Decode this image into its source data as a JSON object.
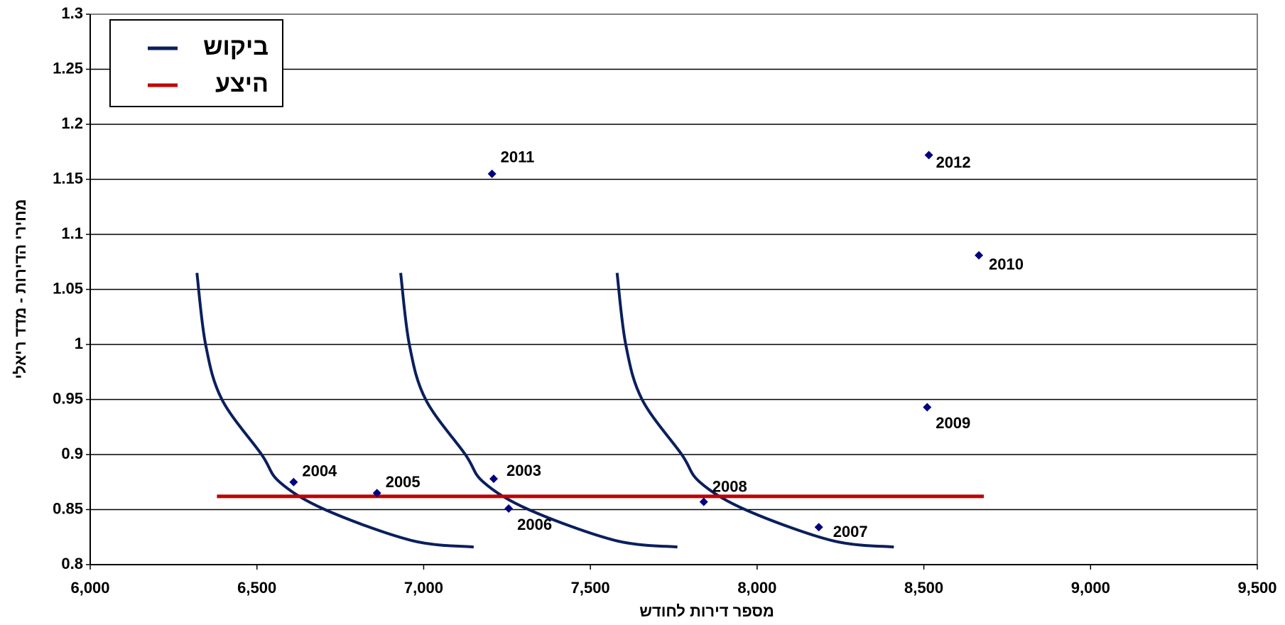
{
  "chart_data": {
    "type": "scatter",
    "x_label": "מספר דירות לחודש",
    "y_label": "מחירי הדירות - מדד ריאלי",
    "xlim": [
      6000,
      9500
    ],
    "xticks": [
      {
        "value": 6000,
        "label": "6,000"
      },
      {
        "value": 6500,
        "label": "6,500"
      },
      {
        "value": 7000,
        "label": "7,000"
      },
      {
        "value": 7500,
        "label": "7,500"
      },
      {
        "value": 8000,
        "label": "8,000"
      },
      {
        "value": 8500,
        "label": "8,500"
      },
      {
        "value": 9000,
        "label": "9,000"
      },
      {
        "value": 9500,
        "label": "9,500"
      }
    ],
    "ylim": [
      0.8,
      1.3
    ],
    "yticks": [
      0.8,
      0.85,
      0.9,
      0.95,
      1,
      1.05,
      1.1,
      1.15,
      1.2,
      1.25,
      1.3
    ],
    "grid": true,
    "legend": "top-left",
    "points": {
      "color": "#000080",
      "labels": [
        "2004",
        "2005",
        "2003",
        "2006",
        "2008",
        "2007",
        "2009",
        "2010",
        "2011",
        "2012"
      ],
      "x": [
        6610,
        6860,
        7210,
        7255,
        7840,
        8185,
        8510,
        8665,
        7205,
        8515
      ],
      "y": [
        0.875,
        0.865,
        0.878,
        0.851,
        0.857,
        0.834,
        0.943,
        1.081,
        1.155,
        1.172
      ]
    },
    "series": [
      {
        "name": "ביקוש",
        "color": "#0a1f5c",
        "curves": [
          {
            "x": [
              6320,
              6346,
              6395,
              6514,
              6568,
              6704,
              6963,
              7150
            ],
            "y": [
              1.065,
              1.0,
              0.95,
              0.9,
              0.875,
              0.85,
              0.822,
              0.816
            ]
          },
          {
            "x": [
              6931,
              6957,
              7006,
              7125,
              7179,
              7315,
              7574,
              7761
            ],
            "y": [
              1.065,
              1.0,
              0.95,
              0.9,
              0.875,
              0.85,
              0.822,
              0.816
            ]
          },
          {
            "x": [
              7580,
              7606,
              7655,
              7774,
              7828,
              7964,
              8223,
              8410
            ],
            "y": [
              1.065,
              1.0,
              0.95,
              0.9,
              0.875,
              0.85,
              0.822,
              0.816
            ]
          }
        ]
      },
      {
        "name": "היצע",
        "color": "#c00000",
        "curves": [
          {
            "x": [
              6380,
              8680
            ],
            "y": [
              0.862,
              0.862
            ]
          }
        ]
      }
    ]
  }
}
